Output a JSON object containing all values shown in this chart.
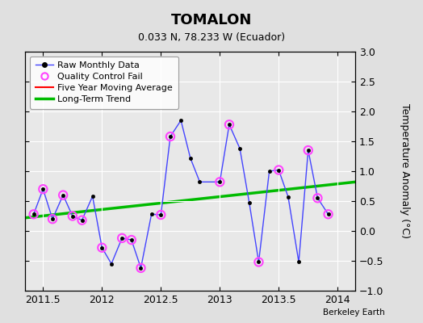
{
  "title": "TOMALON",
  "subtitle": "0.033 N, 78.233 W (Ecuador)",
  "ylabel": "Temperature Anomaly (°C)",
  "credit": "Berkeley Earth",
  "xlim": [
    2011.35,
    2014.15
  ],
  "ylim": [
    -1.0,
    3.0
  ],
  "xticks": [
    2011.5,
    2012.0,
    2012.5,
    2013.0,
    2013.5,
    2014.0
  ],
  "yticks": [
    -1.0,
    -0.5,
    0.0,
    0.5,
    1.0,
    1.5,
    2.0,
    2.5,
    3.0
  ],
  "raw_x": [
    2011.42,
    2011.5,
    2011.58,
    2011.67,
    2011.75,
    2011.83,
    2011.92,
    2012.0,
    2012.08,
    2012.17,
    2012.25,
    2012.33,
    2012.42,
    2012.5,
    2012.58,
    2012.67,
    2012.75,
    2012.83,
    2013.0,
    2013.08,
    2013.17,
    2013.25,
    2013.33,
    2013.42,
    2013.5,
    2013.58,
    2013.67,
    2013.75,
    2013.83,
    2013.92
  ],
  "raw_y": [
    0.28,
    0.7,
    0.2,
    0.6,
    0.25,
    0.18,
    0.58,
    -0.28,
    -0.55,
    -0.12,
    -0.15,
    -0.62,
    0.28,
    0.27,
    1.58,
    1.85,
    1.22,
    0.82,
    0.82,
    1.78,
    1.38,
    0.47,
    -0.52,
    1.0,
    1.02,
    0.57,
    -0.52,
    1.35,
    0.55,
    0.28
  ],
  "qc_fail_x": [
    2011.42,
    2011.5,
    2011.58,
    2011.67,
    2011.75,
    2011.83,
    2012.0,
    2012.17,
    2012.25,
    2012.33,
    2012.5,
    2012.58,
    2013.0,
    2013.08,
    2013.33,
    2013.5,
    2013.75,
    2013.83,
    2013.92
  ],
  "qc_fail_y": [
    0.28,
    0.7,
    0.2,
    0.6,
    0.25,
    0.18,
    -0.28,
    -0.12,
    -0.15,
    -0.62,
    0.27,
    1.58,
    0.82,
    1.78,
    -0.52,
    1.02,
    1.35,
    0.55,
    0.28
  ],
  "trend_x": [
    2011.35,
    2014.15
  ],
  "trend_y": [
    0.22,
    0.82
  ],
  "raw_line_color": "#4444ff",
  "raw_marker_color": "#000000",
  "qc_color": "#ff44ff",
  "trend_color": "#00bb00",
  "moving_avg_color": "#ff0000",
  "bg_color": "#e0e0e0",
  "plot_bg_color": "#e8e8e8",
  "grid_color": "#ffffff"
}
